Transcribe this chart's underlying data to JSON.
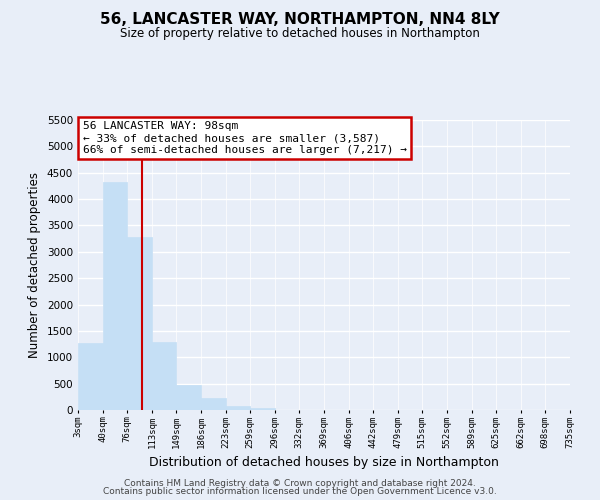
{
  "title": "56, LANCASTER WAY, NORTHAMPTON, NN4 8LY",
  "subtitle": "Size of property relative to detached houses in Northampton",
  "xlabel": "Distribution of detached houses by size in Northampton",
  "ylabel": "Number of detached properties",
  "bar_values": [
    1270,
    4330,
    3280,
    1290,
    480,
    230,
    75,
    45,
    0,
    0,
    0,
    0,
    0,
    0,
    0,
    0,
    0,
    0,
    0,
    0
  ],
  "bin_edges": [
    3,
    40,
    76,
    113,
    149,
    186,
    223,
    259,
    296,
    332,
    369,
    406,
    442,
    479,
    515,
    552,
    589,
    625,
    662,
    698,
    735
  ],
  "tick_labels": [
    "3sqm",
    "40sqm",
    "76sqm",
    "113sqm",
    "149sqm",
    "186sqm",
    "223sqm",
    "259sqm",
    "296sqm",
    "332sqm",
    "369sqm",
    "406sqm",
    "442sqm",
    "479sqm",
    "515sqm",
    "552sqm",
    "589sqm",
    "625sqm",
    "662sqm",
    "698sqm",
    "735sqm"
  ],
  "bar_color": "#c5dff5",
  "bar_edge_color": "#c5dff5",
  "property_line_x": 98,
  "property_line_color": "#cc0000",
  "ylim": [
    0,
    5500
  ],
  "yticks": [
    0,
    500,
    1000,
    1500,
    2000,
    2500,
    3000,
    3500,
    4000,
    4500,
    5000,
    5500
  ],
  "annotation_line1": "56 LANCASTER WAY: 98sqm",
  "annotation_line2": "← 33% of detached houses are smaller (3,587)",
  "annotation_line3": "66% of semi-detached houses are larger (7,217) →",
  "annotation_box_color": "#ffffff",
  "annotation_box_edge_color": "#cc0000",
  "footer_line1": "Contains HM Land Registry data © Crown copyright and database right 2024.",
  "footer_line2": "Contains public sector information licensed under the Open Government Licence v3.0.",
  "background_color": "#e8eef8",
  "grid_color": "#ffffff",
  "fig_width": 6.0,
  "fig_height": 5.0
}
